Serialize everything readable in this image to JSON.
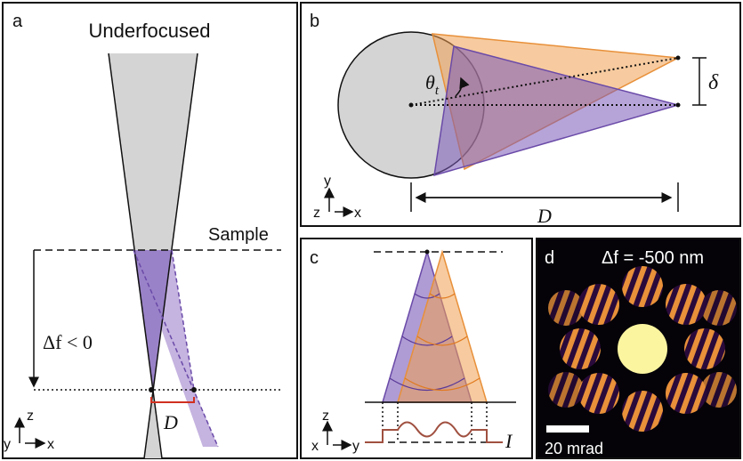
{
  "panels": {
    "a": {
      "label": "a",
      "title": "Underfocused",
      "sample": "Sample",
      "defocus": "Δf < 0",
      "distance": "D",
      "axes": {
        "vertical": "z",
        "origin": "y",
        "horizontal": "x"
      }
    },
    "b": {
      "label": "b",
      "angle": "θ",
      "angle_sub": "t",
      "shift": "δ",
      "distance": "D",
      "axes": {
        "vertical": "y",
        "origin": "z",
        "horizontal": "x"
      }
    },
    "c": {
      "label": "c",
      "intensity": "I",
      "axes": {
        "vertical": "z",
        "origin": "x",
        "horizontal": "y"
      }
    },
    "d": {
      "label": "d",
      "defocus": "Δf = -500 nm",
      "scale_bar": "20 mrad"
    }
  }
}
